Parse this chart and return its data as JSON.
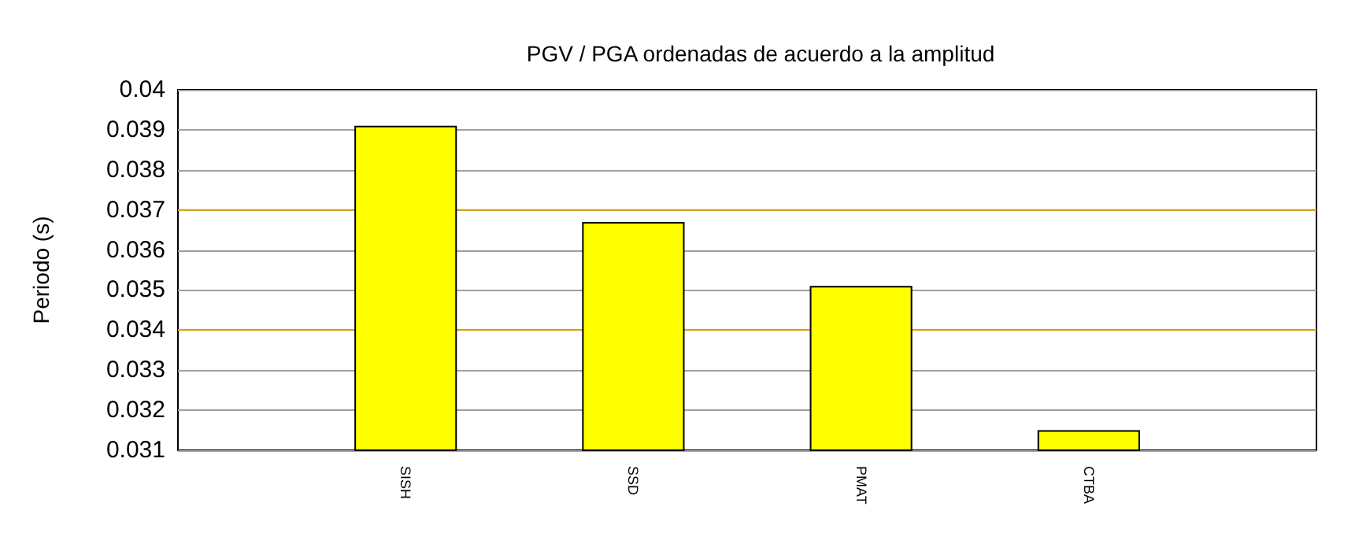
{
  "chart_data": {
    "type": "bar",
    "title": "PGV / PGA ordenadas de acuerdo a la amplitud",
    "ylabel": "Periodo (s)",
    "categories": [
      "SISH",
      "SSD",
      "PMAT",
      "CTBA"
    ],
    "values": [
      0.0391,
      0.0367,
      0.0351,
      0.0315
    ],
    "color": "#ffff00",
    "ylim": [
      0.031,
      0.04
    ],
    "yticks": [
      0.031,
      0.032,
      0.033,
      0.034,
      0.035,
      0.036,
      0.037,
      0.038,
      0.039,
      0.04
    ],
    "grid": "y",
    "ref_lines": [
      {
        "axis": "y",
        "value": 0.037,
        "color": "#e0a000"
      },
      {
        "axis": "y",
        "value": 0.034,
        "color": "#e0a000"
      }
    ]
  }
}
